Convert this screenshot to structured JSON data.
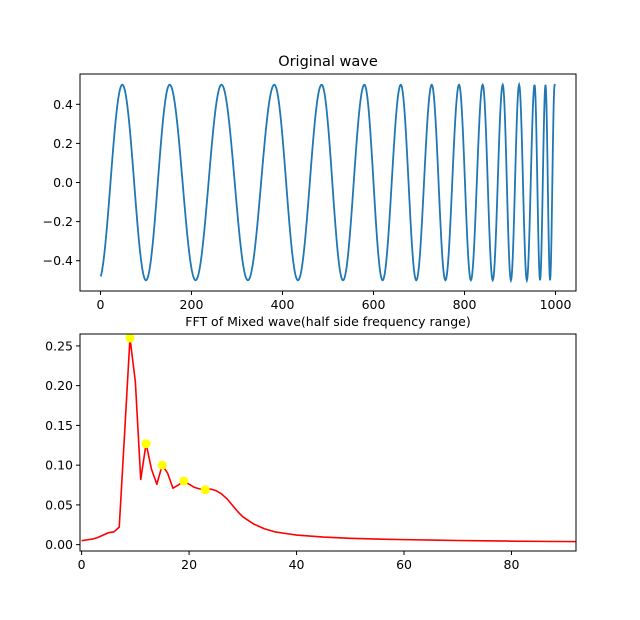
{
  "chart_data": [
    {
      "type": "line",
      "title": "Original wave",
      "title_color": "#000000",
      "xlabel": "",
      "ylabel": "",
      "xlim": [
        -45,
        1045
      ],
      "ylim": [
        -0.555,
        0.555
      ],
      "xticks": [
        0,
        200,
        400,
        600,
        800,
        1000
      ],
      "yticks": [
        -0.4,
        -0.2,
        0.0,
        0.2,
        0.4
      ],
      "grid": false,
      "legend": "none",
      "signal": {
        "description_free": true,
        "amplitude": 0.5,
        "x_range": [
          0,
          1000
        ],
        "sample_points": 1001,
        "peak_x": [
          48,
          152,
          266,
          382,
          486,
          580,
          660,
          728,
          788,
          840,
          884,
          920,
          954,
          978,
          998
        ]
      },
      "series": [
        {
          "color": "#1f77b4",
          "linewidth": 1.8
        }
      ]
    },
    {
      "type": "line",
      "title": "FFT of Mixed wave(half side frequency range)",
      "title_color": "#7b2d8e",
      "xlabel": "",
      "ylabel": "",
      "xlim": [
        -0.3,
        92
      ],
      "ylim": [
        -0.008,
        0.265
      ],
      "xticks": [
        0,
        20,
        40,
        60,
        80
      ],
      "yticks": [
        0.0,
        0.05,
        0.1,
        0.15,
        0.2,
        0.25
      ],
      "grid": false,
      "legend": "none",
      "series": [
        {
          "color": "#ff0000",
          "linewidth": 1.6,
          "x": [
            0,
            1,
            2,
            3,
            4,
            5,
            6,
            7,
            8,
            9,
            10,
            11,
            12,
            13,
            14,
            15,
            16,
            17,
            18,
            19,
            20,
            21,
            22,
            23,
            24,
            25,
            26,
            27,
            28,
            29,
            30,
            32,
            34,
            36,
            38,
            40,
            45,
            50,
            55,
            60,
            65,
            70,
            75,
            80,
            85,
            92
          ],
          "values": [
            0.005,
            0.006,
            0.007,
            0.009,
            0.012,
            0.015,
            0.016,
            0.022,
            0.14,
            0.26,
            0.205,
            0.082,
            0.127,
            0.095,
            0.076,
            0.1,
            0.09,
            0.071,
            0.075,
            0.08,
            0.076,
            0.072,
            0.07,
            0.069,
            0.07,
            0.068,
            0.064,
            0.058,
            0.05,
            0.042,
            0.035,
            0.026,
            0.02,
            0.016,
            0.014,
            0.012,
            0.0095,
            0.008,
            0.007,
            0.0063,
            0.0057,
            0.0052,
            0.0048,
            0.0044,
            0.0041,
            0.0038
          ]
        }
      ],
      "markers": {
        "color": "#ffff00",
        "points": [
          {
            "x": 9,
            "y": 0.26
          },
          {
            "x": 12,
            "y": 0.127
          },
          {
            "x": 15,
            "y": 0.1
          },
          {
            "x": 19,
            "y": 0.08
          },
          {
            "x": 23,
            "y": 0.069
          }
        ]
      }
    }
  ]
}
